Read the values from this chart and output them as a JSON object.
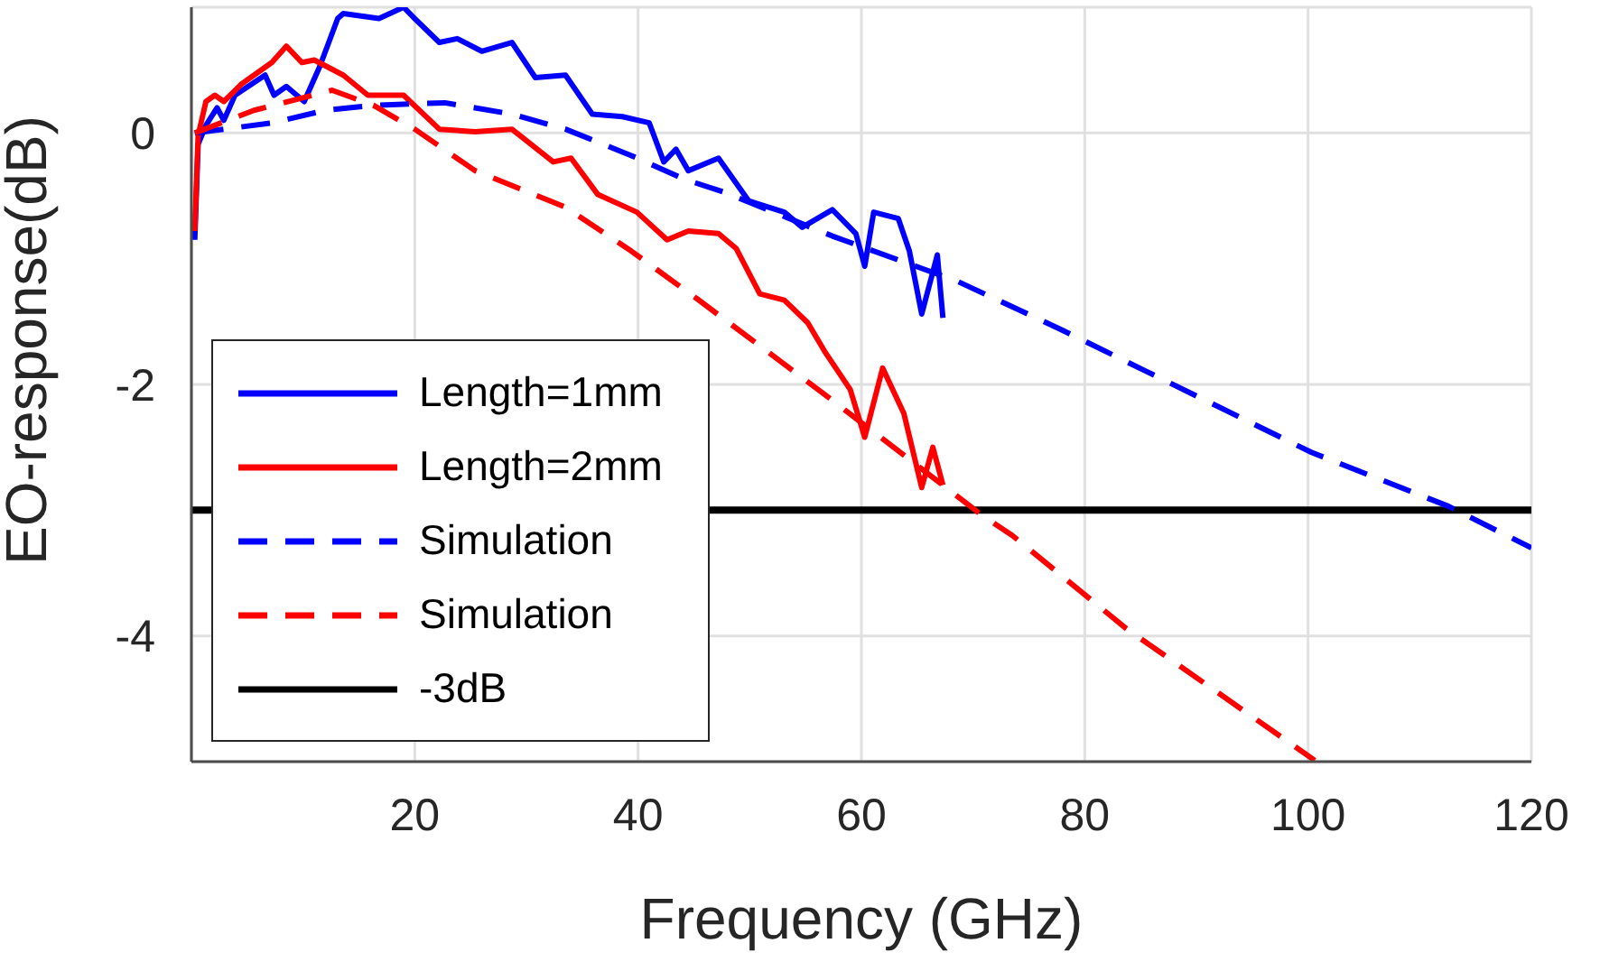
{
  "chart_data": {
    "type": "line",
    "xlabel": "Frequency (GHz)",
    "ylabel": "EO-response(dB)",
    "xlim": [
      0,
      120
    ],
    "ylim": [
      -5,
      1
    ],
    "xticks": [
      20,
      40,
      60,
      80,
      100,
      120
    ],
    "yticks": [
      -4,
      -2,
      0
    ],
    "grid": true,
    "legend": "bottom left",
    "marker": "none",
    "series": [
      {
        "name": "Length=1mm",
        "color": "#0000ff",
        "line_style": "solid",
        "x": [
          0.3,
          0.6,
          1.3,
          2.3,
          2.9,
          3.9,
          6.6,
          7.4,
          8.5,
          10.1,
          11.5,
          13.1,
          13.6,
          16.8,
          19,
          20,
          22.2,
          23.8,
          26,
          28.7,
          30.8,
          33.5,
          35.9,
          38.6,
          41,
          42.3,
          43.4,
          44.5,
          47.2,
          49.9,
          53.1,
          54.7,
          57.4,
          59.5,
          60.3,
          61.1,
          63.3,
          64.3,
          65.4,
          66.8,
          67.3
        ],
        "values": [
          -0.85,
          -0.09,
          0.06,
          0.2,
          0.1,
          0.3,
          0.46,
          0.3,
          0.37,
          0.25,
          0.53,
          0.91,
          0.95,
          0.91,
          1.0,
          0.91,
          0.72,
          0.75,
          0.65,
          0.72,
          0.44,
          0.46,
          0.15,
          0.13,
          0.08,
          -0.23,
          -0.13,
          -0.3,
          -0.2,
          -0.54,
          -0.63,
          -0.75,
          -0.61,
          -0.8,
          -1.06,
          -0.63,
          -0.68,
          -0.94,
          -1.44,
          -0.97,
          -1.47
        ]
      },
      {
        "name": "Length=2mm",
        "color": "#ff0000",
        "line_style": "solid",
        "x": [
          0.3,
          0.6,
          1.3,
          2.1,
          2.9,
          4.5,
          7.2,
          8.5,
          9.9,
          11,
          13.6,
          15.8,
          19,
          22.2,
          25.4,
          28.7,
          32.4,
          34,
          36.4,
          39.9,
          42.6,
          44.5,
          47.2,
          48.8,
          50.9,
          53.1,
          55.2,
          56.8,
          59,
          60.3,
          61.9,
          63.8,
          65.4,
          66.4,
          67.3
        ],
        "values": [
          -0.78,
          -0.02,
          0.25,
          0.3,
          0.25,
          0.39,
          0.56,
          0.69,
          0.56,
          0.58,
          0.46,
          0.3,
          0.3,
          0.03,
          0.01,
          0.03,
          -0.23,
          -0.2,
          -0.49,
          -0.63,
          -0.85,
          -0.78,
          -0.8,
          -0.92,
          -1.28,
          -1.33,
          -1.51,
          -1.75,
          -2.04,
          -2.42,
          -1.87,
          -2.23,
          -2.82,
          -2.5,
          -2.8
        ]
      },
      {
        "name": "Simulation",
        "color": "#0000ff",
        "line_style": "dashed",
        "x": [
          0.3,
          2.9,
          7.2,
          12,
          16.3,
          22.7,
          28.7,
          33.5,
          39.4,
          44.2,
          47.7,
          57.4,
          68.6,
          77.8,
          100.3,
          112.6,
          120
        ],
        "values": [
          0,
          0.03,
          0.08,
          0.18,
          0.22,
          0.24,
          0.15,
          0.03,
          -0.18,
          -0.37,
          -0.47,
          -0.82,
          -1.18,
          -1.56,
          -2.54,
          -2.97,
          -3.3
        ]
      },
      {
        "name": "Simulation",
        "color": "#ff0000",
        "line_style": "dashed",
        "x": [
          0.3,
          5.6,
          12.6,
          16.3,
          20,
          25.4,
          33.5,
          39.4,
          45.3,
          57.9,
          70.8,
          73.5,
          83.7,
          100.6
        ],
        "values": [
          0,
          0.18,
          0.34,
          0.22,
          0.03,
          -0.3,
          -0.59,
          -0.94,
          -1.32,
          -2.16,
          -3.04,
          -3.2,
          -3.94,
          -4.99
        ]
      }
    ],
    "ref_lines": [
      {
        "axis": "y",
        "value": -3,
        "label": "-3dB",
        "color": "#000000",
        "line_style": "solid"
      }
    ]
  }
}
